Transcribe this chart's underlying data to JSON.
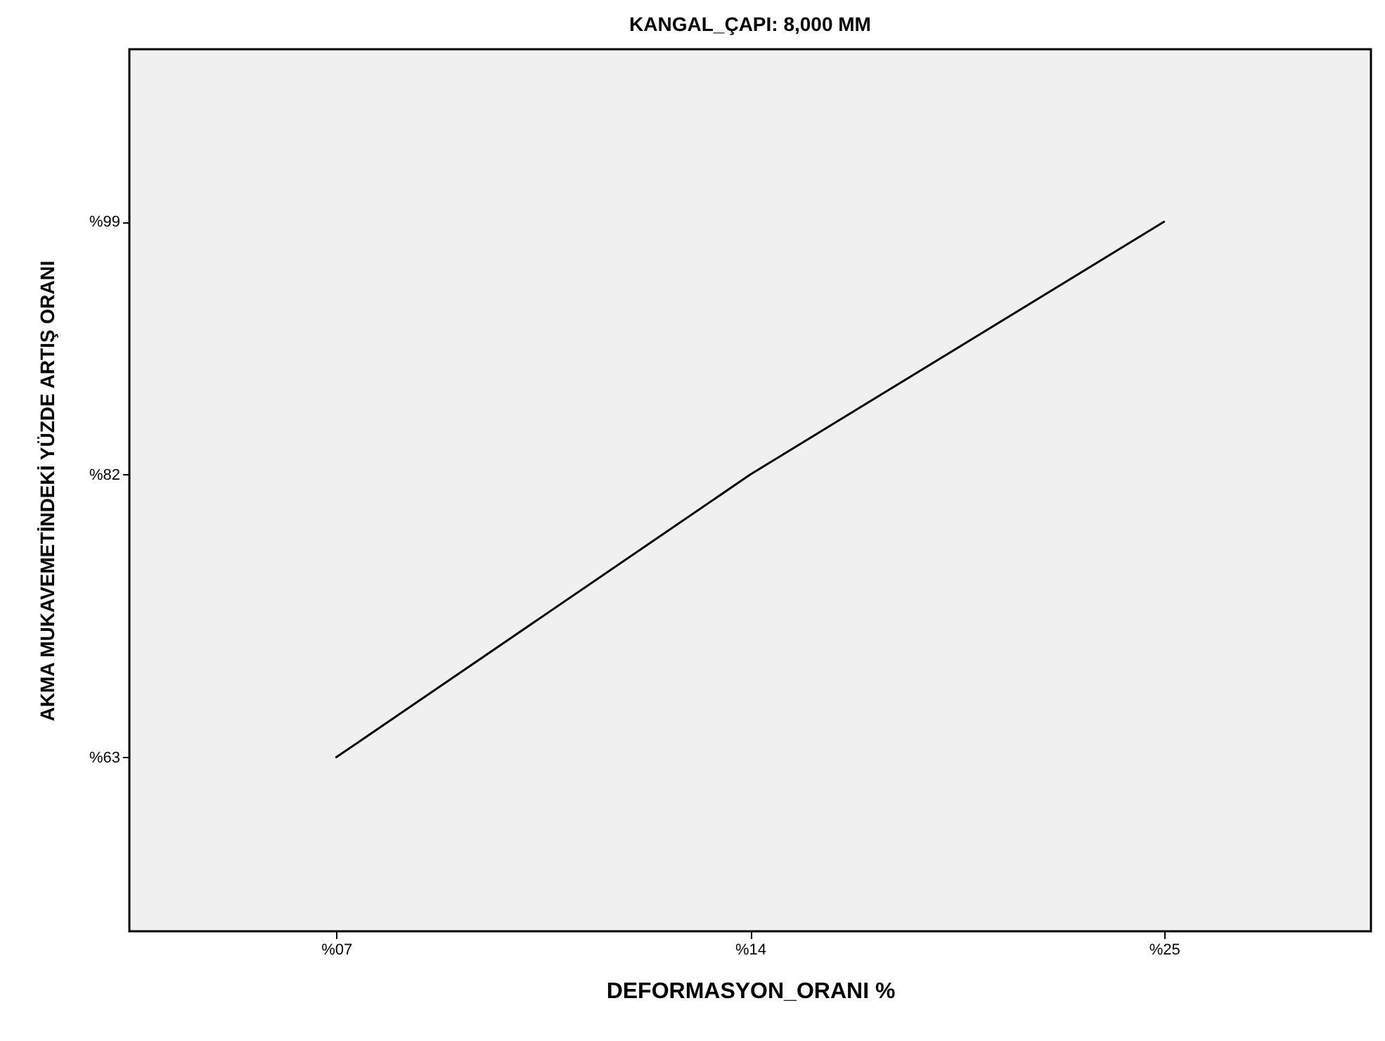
{
  "chart_data": {
    "type": "line",
    "title": "KANGAL_ÇAPI: 8,000  MM",
    "xlabel": "DEFORMASYON_ORANI  %",
    "ylabel": "AKMA MUKAVEMETİNDEKİ YÜZDE ARTIŞ ORANI",
    "categories": [
      "%07",
      "%14",
      "%25"
    ],
    "series": [
      {
        "color": "#000000",
        "values": [
          63,
          82,
          99
        ]
      }
    ],
    "ylim": [
      51.3,
      110.6
    ],
    "yticks": [
      {
        "value": 63,
        "label": "%63"
      },
      {
        "value": 82,
        "label": "%82"
      },
      {
        "value": 99,
        "label": "%99"
      }
    ],
    "grid": false,
    "marker": "none",
    "line_style": "solid"
  }
}
